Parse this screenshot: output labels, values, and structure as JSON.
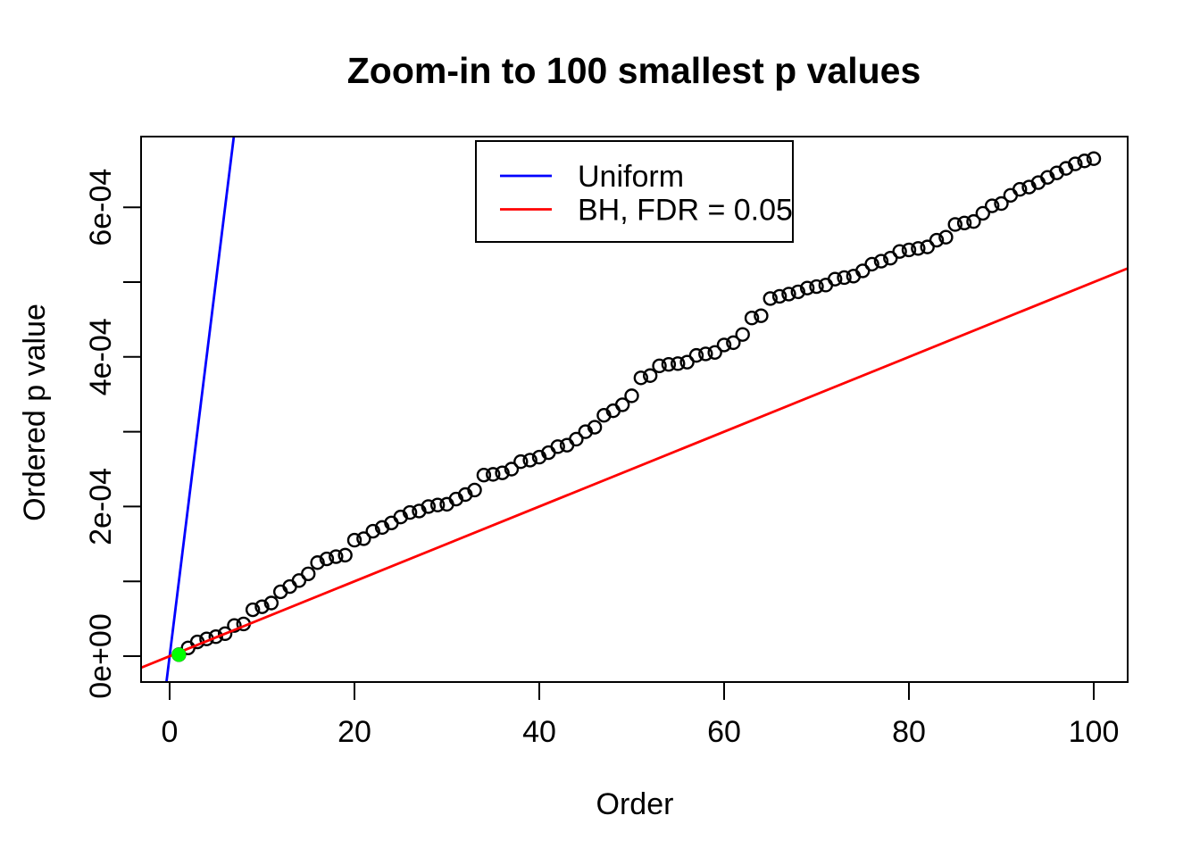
{
  "figure": {
    "background_color": "#ffffff",
    "frame_color": "#000000"
  },
  "chart_data": {
    "type": "scatter",
    "title": "Zoom-in to 100 smallest p values",
    "xlabel": "Order",
    "ylabel": "Ordered p value",
    "grid": false,
    "xlim": [
      -3.1,
      103.8
    ],
    "ylim_e04": [
      -0.35,
      6.95
    ],
    "x_axis": {
      "tick_values": [
        0,
        20,
        40,
        60,
        80,
        100
      ],
      "tick_labels": [
        "0",
        "20",
        "40",
        "60",
        "80",
        "100"
      ]
    },
    "y_axis": {
      "major_tick_values_e04": [
        0,
        2,
        4,
        6
      ],
      "major_tick_labels": [
        "0e+00",
        "2e-04",
        "4e-04",
        "6e-04"
      ],
      "minor_tick_values_e04": [
        1,
        3,
        5
      ]
    },
    "x_is_order_index": true,
    "orders": "integers 1..100",
    "p_values_e06": [
      2,
      11,
      19,
      23,
      26,
      30,
      41,
      43,
      62,
      66,
      71,
      86,
      93,
      101,
      110,
      125,
      130,
      133,
      135,
      155,
      157,
      167,
      172,
      178,
      186,
      192,
      194,
      200,
      202,
      203,
      210,
      216,
      222,
      242,
      243,
      245,
      250,
      260,
      262,
      266,
      272,
      280,
      282,
      290,
      300,
      306,
      322,
      328,
      336,
      348,
      372,
      375,
      388,
      390,
      391,
      393,
      402,
      404,
      406,
      416,
      419,
      430,
      452,
      455,
      478,
      481,
      484,
      487,
      492,
      494,
      496,
      504,
      506,
      508,
      515,
      524,
      528,
      532,
      541,
      543,
      545,
      547,
      556,
      560,
      577,
      579,
      581,
      592,
      602,
      605,
      616,
      624,
      627,
      633,
      640,
      646,
      652,
      658,
      662,
      665
    ],
    "marker": {
      "shape": "open-circle",
      "color": "#000000"
    },
    "highlight_point": {
      "order": 1,
      "p_value_e06": 2,
      "color": "#00ff00",
      "style": "filled-circle"
    },
    "lines": [
      {
        "name": "Uniform",
        "color": "#0000ff",
        "slope_e04_per_order": 1.0,
        "intercept_e04": 0
      },
      {
        "name": "BH, FDR = 0.05",
        "color": "#ff0000",
        "slope_e04_per_order": 0.05,
        "intercept_e04": 0
      }
    ],
    "legend": {
      "position": "top-center-inside",
      "entries": [
        {
          "label": "Uniform",
          "color": "#0000ff"
        },
        {
          "label": "BH, FDR = 0.05",
          "color": "#ff0000"
        }
      ]
    }
  }
}
